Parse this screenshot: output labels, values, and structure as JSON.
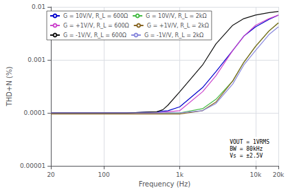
{
  "chart_data": {
    "type": "line",
    "xlabel": "Frequency (Hz)",
    "ylabel": "THD+N (%)",
    "log": true,
    "grid": true,
    "legend": "upper left",
    "xlim": [
      20,
      20000
    ],
    "ylim": [
      1e-05,
      0.01
    ],
    "xticks": [
      20,
      100,
      {
        "value": 1000,
        "label": "1k"
      },
      {
        "value": 10000,
        "label": "10k"
      },
      {
        "value": 20000,
        "label": "20k"
      }
    ],
    "yticks": [
      {
        "value": 1e-05,
        "label": "0.00001"
      },
      0.0001,
      0.001,
      0.01
    ],
    "annotation": "VOUT = 1VRMS\nBW = 80kHz\nVs = ±2.5V",
    "series": [
      {
        "name": "G = 10V/V, R_L = 600Ω",
        "color": "#0000CC",
        "x": [
          20,
          50,
          100,
          200,
          500,
          700,
          1000,
          2000,
          3000,
          5000,
          7000,
          10000,
          15000,
          20000
        ],
        "values": [
          0.0001,
          0.0001,
          0.0001,
          0.0001,
          0.000105,
          0.00011,
          0.00013,
          0.0003,
          0.0006,
          0.0015,
          0.0028,
          0.0042,
          0.0058,
          0.007
        ]
      },
      {
        "name": "G = 10V/V, R_L = 2kΩ",
        "color": "#44BB44",
        "x": [
          20,
          50,
          100,
          200,
          500,
          700,
          1000,
          2000,
          3000,
          5000,
          7000,
          10000,
          15000,
          20000
        ],
        "values": [
          0.0001,
          0.0001,
          0.0001,
          0.0001,
          0.0001,
          0.0001,
          0.0001,
          0.00012,
          0.00018,
          0.0004,
          0.0009,
          0.0018,
          0.0035,
          0.005
        ]
      },
      {
        "name": "G = +1V/V, R_L = 600Ω",
        "color": "#CC44CC",
        "x": [
          20,
          50,
          100,
          200,
          500,
          700,
          1000,
          2000,
          3000,
          5000,
          7000,
          10000,
          15000,
          20000
        ],
        "values": [
          0.0001,
          0.0001,
          0.0001,
          0.0001,
          0.0001,
          0.000105,
          0.00011,
          0.00025,
          0.0005,
          0.0015,
          0.0028,
          0.0045,
          0.006,
          0.007
        ]
      },
      {
        "name": "G = +1V/V, R_L = 2kΩ",
        "color": "#886622",
        "x": [
          20,
          50,
          100,
          200,
          500,
          700,
          1000,
          2000,
          3000,
          5000,
          7000,
          10000,
          15000,
          20000
        ],
        "values": [
          9.5e-05,
          9.5e-05,
          9.5e-05,
          9.5e-05,
          9.5e-05,
          9.5e-05,
          9.5e-05,
          0.00011,
          0.00016,
          0.0004,
          0.0009,
          0.0018,
          0.0035,
          0.005
        ]
      },
      {
        "name": "G = -1V/V, R_L = 600Ω",
        "color": "#111111",
        "x": [
          20,
          50,
          100,
          200,
          500,
          600,
          700,
          1000,
          2000,
          3000,
          5000,
          7000,
          10000,
          15000,
          20000
        ],
        "values": [
          0.0001,
          0.0001,
          0.0001,
          0.0001,
          0.000105,
          0.000115,
          0.00014,
          0.00025,
          0.0008,
          0.002,
          0.0045,
          0.006,
          0.007,
          0.0078,
          0.0082
        ]
      },
      {
        "name": "G = -1V/V, R_L = 2kΩ",
        "color": "#8888DD",
        "x": [
          20,
          50,
          100,
          200,
          500,
          700,
          1000,
          2000,
          3000,
          5000,
          7000,
          10000,
          15000,
          20000
        ],
        "values": [
          0.0001,
          0.0001,
          0.0001,
          0.0001,
          0.0001,
          0.0001,
          0.0001,
          0.00011,
          0.00015,
          0.00035,
          0.0008,
          0.0015,
          0.003,
          0.0042
        ]
      }
    ]
  }
}
